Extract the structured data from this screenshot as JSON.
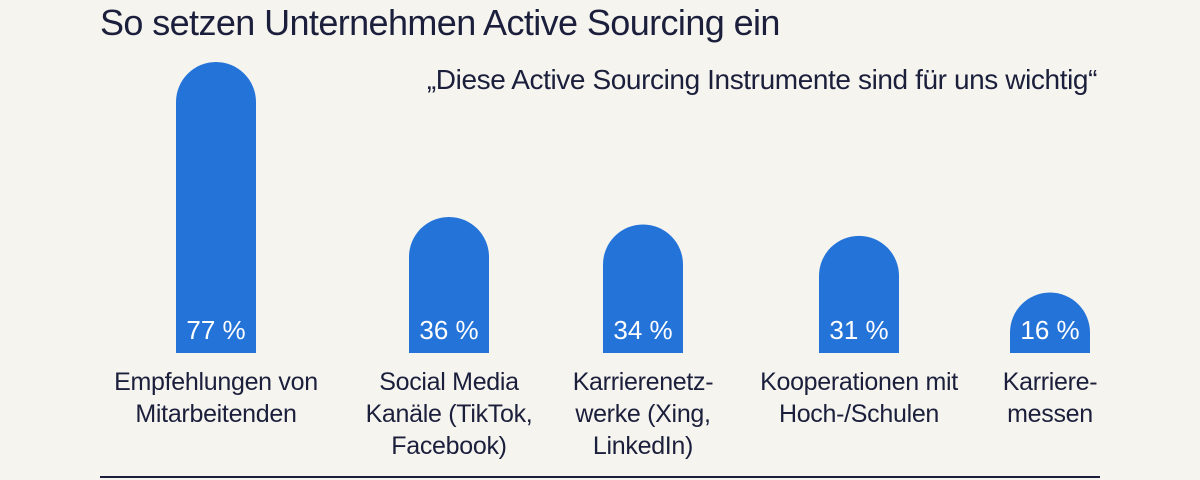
{
  "chart_data": {
    "type": "bar",
    "title": "So setzen Unternehmen Active Sourcing ein",
    "subtitle": "„Diese Active Sourcing Instrumente sind für uns wichtig“",
    "categories": [
      "Empfehlungen von Mitarbeitenden",
      "Social Media Kanäle (TikTok, Facebook)",
      "Karrierenetzwerke (Xing, LinkedIn)",
      "Kooperationen mit Hoch-/Schulen",
      "Karrieremessen"
    ],
    "category_lines": [
      [
        "Empfehlungen von",
        "Mitarbeitenden"
      ],
      [
        "Social Media",
        "Kanäle (TikTok,",
        "Facebook)"
      ],
      [
        "Karrierenetz-",
        "werke (Xing,",
        "LinkedIn)"
      ],
      [
        "Kooperationen mit",
        "Hoch-/Schulen"
      ],
      [
        "Karriere-",
        "messen"
      ]
    ],
    "values": [
      77,
      36,
      34,
      31,
      16
    ],
    "value_labels": [
      "77 %",
      "36 %",
      "34 %",
      "31 %",
      "16 %"
    ],
    "unit": "%",
    "ylim": [
      0,
      77
    ],
    "grid": false,
    "legend": "none",
    "bar_color": "#2373d9"
  }
}
